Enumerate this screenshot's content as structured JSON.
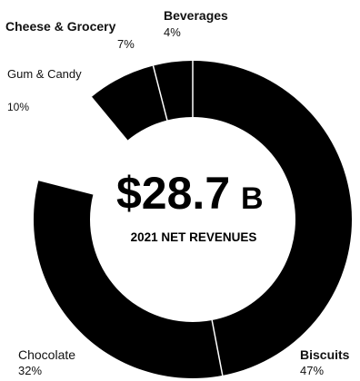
{
  "chart_data": {
    "type": "pie",
    "variant": "donut",
    "center_value": "$28.7",
    "center_unit": "B",
    "center_caption": "2021 NET REVENUES",
    "categories": [
      "Biscuits",
      "Chocolate",
      "Gum & Candy",
      "Cheese & Grocery",
      "Beverages"
    ],
    "values": [
      47,
      32,
      10,
      7,
      4
    ],
    "labels": [
      "47%",
      "32%",
      "10%",
      "7%",
      "4%"
    ],
    "colors": {
      "ring": "#000000",
      "separator": "#ffffff",
      "background": "#ffffff"
    }
  }
}
